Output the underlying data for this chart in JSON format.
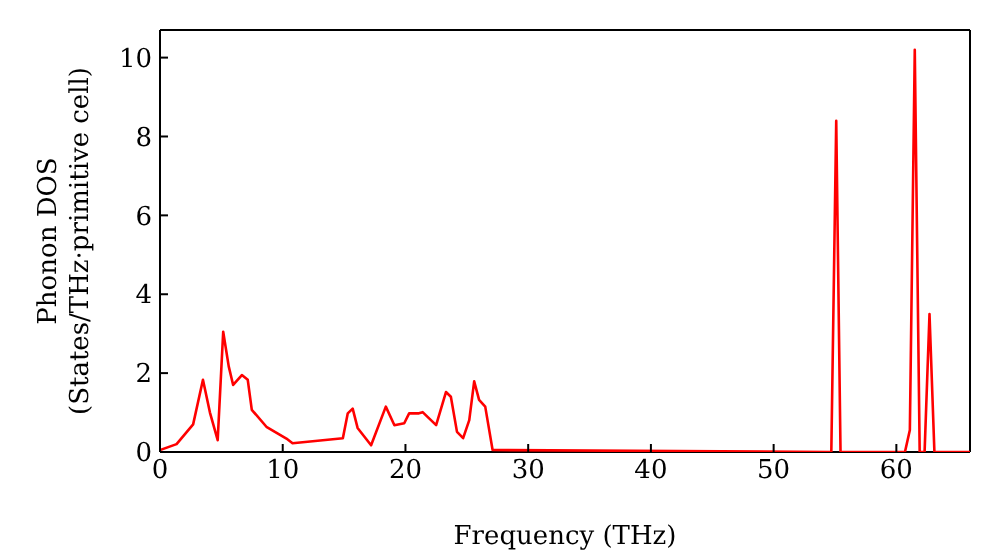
{
  "chart_data": {
    "type": "line",
    "xlabel": "Frequency (THz)",
    "ylabel": "Phonon DOS\n(States/THz·primitive cell)",
    "xlim": [
      0,
      66
    ],
    "ylim": [
      0,
      10.7
    ],
    "xticks": [
      0,
      10,
      20,
      30,
      40,
      50,
      60
    ],
    "yticks": [
      0,
      2,
      4,
      6,
      8,
      10
    ],
    "grid": false,
    "legend": false,
    "marker": "none",
    "line_style": "solid",
    "series": [
      {
        "color": "#ff0000",
        "x": [
          0,
          1.35,
          2.7,
          3.5,
          4.07,
          4.7,
          5.15,
          5.6,
          5.96,
          6.67,
          7.15,
          7.48,
          8.67,
          10.3,
          10.8,
          14.9,
          15.3,
          15.7,
          16.1,
          17.2,
          18.4,
          19.1,
          19.9,
          20.3,
          21.1,
          21.4,
          22.5,
          23.3,
          23.7,
          24.2,
          24.7,
          25.2,
          25.6,
          26.0,
          26.5,
          27.1,
          54.7,
          55.1,
          55.45,
          60.7,
          61.1,
          61.5,
          61.9,
          62.3,
          62.7,
          63.1,
          66
        ],
        "values": [
          0.05,
          0.2,
          0.7,
          1.83,
          1.0,
          0.3,
          3.05,
          2.17,
          1.7,
          1.95,
          1.83,
          1.07,
          0.64,
          0.34,
          0.22,
          0.35,
          0.98,
          1.1,
          0.61,
          0.17,
          1.15,
          0.68,
          0.73,
          0.98,
          0.98,
          1.01,
          0.68,
          1.52,
          1.4,
          0.51,
          0.35,
          0.81,
          1.79,
          1.32,
          1.15,
          0.05,
          0,
          8.4,
          0,
          0,
          0.56,
          10.2,
          0,
          0,
          3.5,
          0,
          0
        ]
      }
    ]
  }
}
